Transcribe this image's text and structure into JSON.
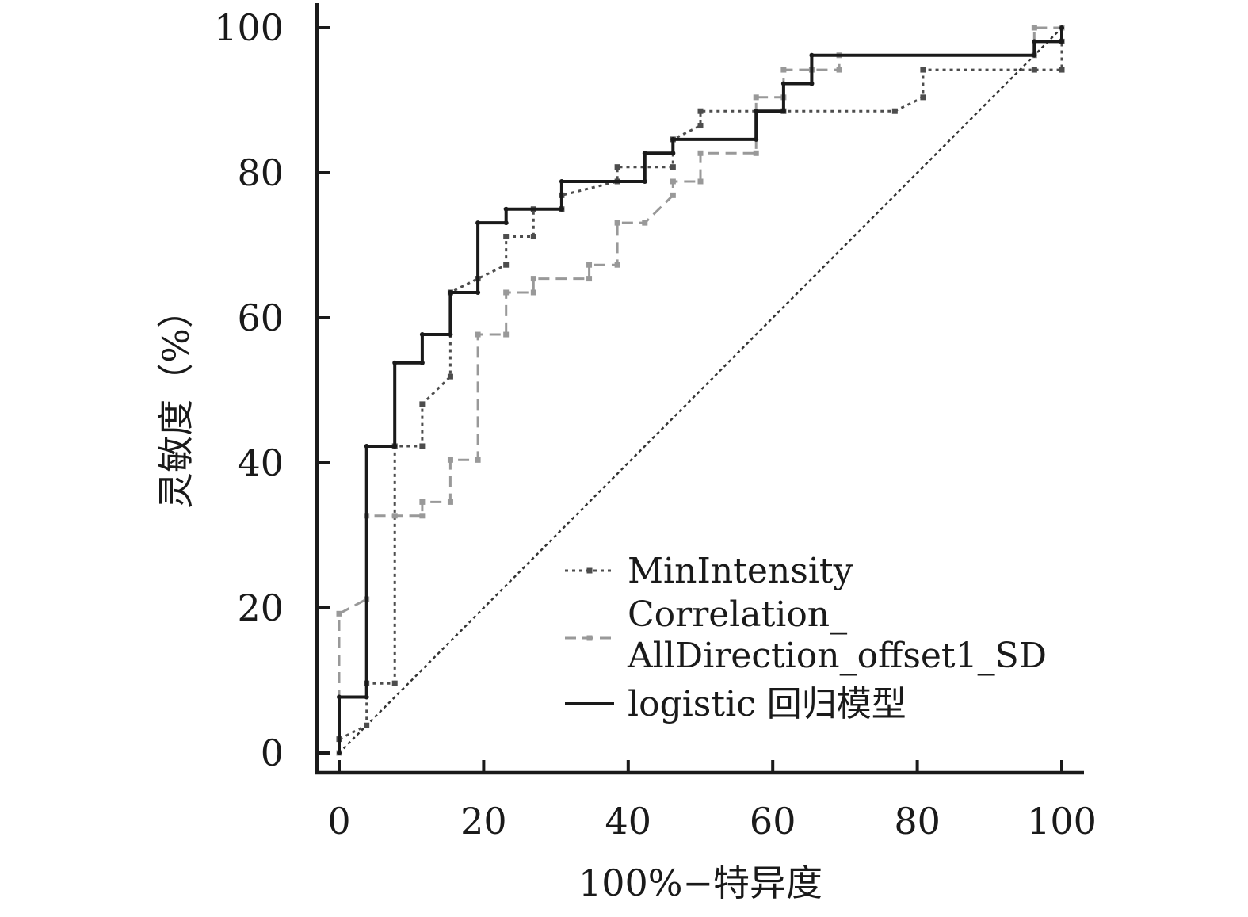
{
  "chart_data": {
    "type": "line",
    "xlabel": "100%−特异度",
    "ylabel": "灵敏度（%）",
    "xlim": [
      0,
      100
    ],
    "ylim": [
      0,
      100
    ],
    "x_ticks": [
      0,
      20,
      40,
      60,
      80,
      100
    ],
    "y_ticks": [
      0,
      20,
      40,
      60,
      80,
      100
    ],
    "x_tick_labels": [
      "0",
      "20",
      "40",
      "60",
      "80",
      "100"
    ],
    "y_tick_labels": [
      "0",
      "20",
      "40",
      "60",
      "80",
      "100"
    ],
    "grid": false,
    "legend_position": "bottom-right",
    "reference_line": {
      "x": [
        0,
        100
      ],
      "y": [
        0,
        100
      ],
      "style": "dotted"
    },
    "series": [
      {
        "name": "MinIntensity",
        "color": "#4d4d4d",
        "style": "dotted",
        "x": [
          0,
          0,
          3.8,
          3.8,
          7.7,
          7.7,
          11.5,
          11.5,
          15.4,
          15.4,
          19.2,
          23.1,
          23.1,
          26.9,
          26.9,
          30.8,
          30.8,
          38.5,
          38.5,
          46.2,
          46.2,
          50,
          50,
          61.5,
          76.9,
          80.8,
          80.8,
          96.2,
          100,
          100
        ],
        "y": [
          0,
          1.9,
          3.8,
          9.6,
          9.6,
          42.3,
          42.3,
          48.1,
          51.9,
          63.5,
          65.4,
          67.3,
          71.2,
          71.2,
          75,
          75,
          76.9,
          78.8,
          80.8,
          80.8,
          84.6,
          86.5,
          88.5,
          88.5,
          88.5,
          90.4,
          94.2,
          94.2,
          94.2,
          98.1
        ]
      },
      {
        "name": "Correlation_AllDirection_offset1_SD",
        "legend_lines": [
          "Correlation_",
          "AllDirection_offset1_SD"
        ],
        "color": "#999999",
        "style": "dashed",
        "x": [
          0,
          0,
          3.8,
          3.8,
          7.7,
          11.5,
          11.5,
          15.4,
          15.4,
          19.2,
          19.2,
          23.1,
          23.1,
          26.9,
          26.9,
          34.6,
          34.6,
          38.5,
          38.5,
          42.3,
          46.2,
          46.2,
          50,
          50,
          57.7,
          57.7,
          61.5,
          61.5,
          65.4,
          69.2,
          69.2,
          96.2,
          96.2,
          100,
          100
        ],
        "y": [
          0,
          19.2,
          21.2,
          32.7,
          32.7,
          32.7,
          34.6,
          34.6,
          40.4,
          40.4,
          57.7,
          57.7,
          63.5,
          63.5,
          65.4,
          65.4,
          67.3,
          67.3,
          73.1,
          73.1,
          76.9,
          78.8,
          78.8,
          82.7,
          82.7,
          90.4,
          90.4,
          94.2,
          94.2,
          94.2,
          96.2,
          96.2,
          100,
          100,
          100
        ]
      },
      {
        "name": "logistic 回归模型",
        "color": "#1a1a1a",
        "style": "solid",
        "x": [
          0,
          0,
          3.8,
          3.8,
          7.7,
          7.7,
          11.5,
          11.5,
          15.4,
          15.4,
          19.2,
          19.2,
          23.1,
          23.1,
          30.8,
          30.8,
          42.3,
          42.3,
          46.2,
          46.2,
          57.7,
          57.7,
          61.5,
          61.5,
          65.4,
          65.4,
          96.2,
          96.2,
          100,
          100
        ],
        "y": [
          0,
          7.7,
          7.7,
          42.3,
          42.3,
          53.8,
          53.8,
          57.7,
          57.7,
          63.5,
          63.5,
          73.1,
          73.1,
          75,
          75,
          78.8,
          78.8,
          82.7,
          82.7,
          84.6,
          84.6,
          88.5,
          88.5,
          92.3,
          92.3,
          96.2,
          96.2,
          98.1,
          98.1,
          100
        ]
      }
    ]
  }
}
